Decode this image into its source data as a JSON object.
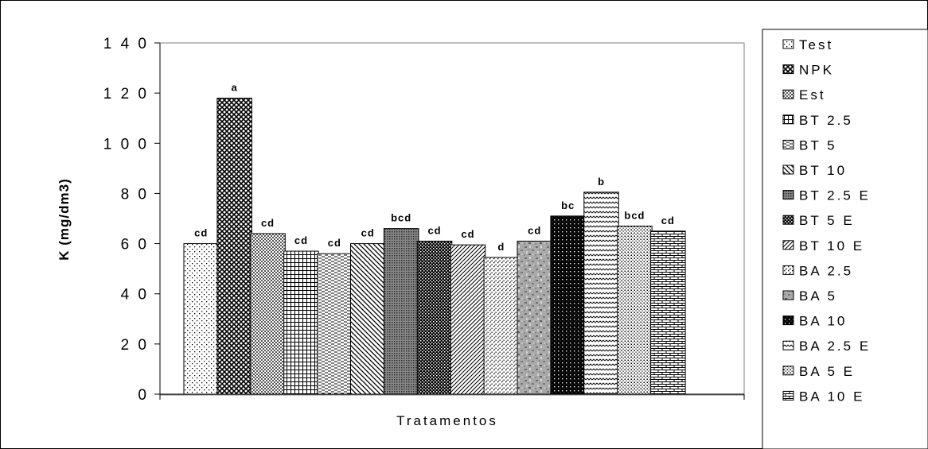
{
  "chart_data": {
    "type": "bar",
    "title": "",
    "xlabel": "Tratamentos",
    "ylabel": "K (mg/dm3)",
    "ylim": [
      0,
      140
    ],
    "yticks": [
      0,
      20,
      40,
      60,
      80,
      100,
      120,
      140
    ],
    "ytick_labels": [
      "0",
      "2 0",
      "4 0",
      "6 0",
      "8 0",
      "1 0 0",
      "1 2 0",
      "1 4 0"
    ],
    "grid": false,
    "legend_position": "right",
    "categories": [
      "Test",
      "NPK",
      "Est",
      "BT 2.5",
      "BT 5",
      "BT 10",
      "BT 2.5 E",
      "BT 5 E",
      "BT 10 E",
      "BA 2.5",
      "BA 5",
      "BA 10",
      "BA 2.5 E",
      "BA 5 E",
      "BA 10 E"
    ],
    "series": [
      {
        "name": "Test",
        "value": 60,
        "label": "cd",
        "pattern": "dots-sparse"
      },
      {
        "name": "NPK",
        "value": 118,
        "label": "a",
        "pattern": "crosshatch-dark"
      },
      {
        "name": "Est",
        "value": 64,
        "label": "cd",
        "pattern": "checker-fine"
      },
      {
        "name": "BT 2.5",
        "value": 57,
        "label": "cd",
        "pattern": "grid"
      },
      {
        "name": "BT 5",
        "value": 56,
        "label": "cd",
        "pattern": "dash-horizontal"
      },
      {
        "name": "BT 10",
        "value": 60,
        "label": "cd",
        "pattern": "diag-down"
      },
      {
        "name": "BT 2.5 E",
        "value": 66,
        "label": "bcd",
        "pattern": "dots-dense"
      },
      {
        "name": "BT 5 E",
        "value": 61,
        "label": "cd",
        "pattern": "checker-dark"
      },
      {
        "name": "BT 10 E",
        "value": 59.5,
        "label": "cd",
        "pattern": "diag-up"
      },
      {
        "name": "BA 2.5",
        "value": 54.5,
        "label": "d",
        "pattern": "dots-diag"
      },
      {
        "name": "BA 5",
        "value": 61,
        "label": "cd",
        "pattern": "granite"
      },
      {
        "name": "BA 10",
        "value": 71,
        "label": "bc",
        "pattern": "crosshatch-black"
      },
      {
        "name": "BA 2.5 E",
        "value": 80.5,
        "label": "b",
        "pattern": "zigzag"
      },
      {
        "name": "BA 5 E",
        "value": 67,
        "label": "bcd",
        "pattern": "dots-medium"
      },
      {
        "name": "BA 10 E",
        "value": 65,
        "label": "cd",
        "pattern": "brick"
      }
    ],
    "legend": [
      "Test",
      "NPK",
      "Est",
      "BT 2.5",
      "BT 5",
      "BT 10",
      "BT 2.5 E",
      "BT 5 E",
      "BT 10 E",
      "BA 2.5",
      "BA 5",
      "BA 10",
      "BA 2.5 E",
      "BA 5 E",
      "BA 10 E"
    ],
    "legend_labels": [
      "Test",
      "NPK",
      "Est",
      "BT 2.5",
      "BT 5",
      "BT 10",
      "BT 2.5 E",
      "BT 5 E",
      "BT 10 E",
      "BA 2.5",
      "BA 5",
      "BA 10",
      "BA 2.5 E",
      "BA 5 E",
      "BA 10 E"
    ]
  }
}
